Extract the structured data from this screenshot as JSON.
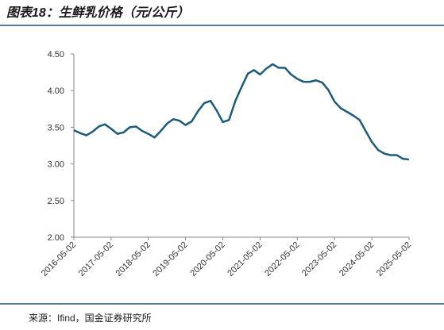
{
  "chart_data": {
    "type": "line",
    "title": "图表18：生鲜乳价格（元/公斤）",
    "source": "来源：Ifind，国金证券研究所",
    "x": [
      "2016-05-02",
      "2016-07-02",
      "2016-09-02",
      "2016-11-02",
      "2017-01-02",
      "2017-03-02",
      "2017-05-02",
      "2017-07-02",
      "2017-09-02",
      "2017-11-02",
      "2018-01-02",
      "2018-03-02",
      "2018-05-02",
      "2018-07-02",
      "2018-09-02",
      "2018-11-02",
      "2019-01-02",
      "2019-03-02",
      "2019-05-02",
      "2019-07-02",
      "2019-09-02",
      "2019-11-02",
      "2020-01-02",
      "2020-03-02",
      "2020-05-02",
      "2020-07-02",
      "2020-09-02",
      "2020-11-02",
      "2021-01-02",
      "2021-03-02",
      "2021-05-02",
      "2021-07-02",
      "2021-09-02",
      "2021-11-02",
      "2022-01-02",
      "2022-03-02",
      "2022-05-02",
      "2022-07-02",
      "2022-09-02",
      "2022-11-02",
      "2023-01-02",
      "2023-03-02",
      "2023-05-02",
      "2023-07-02",
      "2023-09-02",
      "2023-11-02",
      "2024-01-02",
      "2024-03-02",
      "2024-05-02",
      "2024-07-02",
      "2024-09-02",
      "2024-11-02",
      "2025-01-02",
      "2025-03-02",
      "2025-05-02"
    ],
    "series": [
      {
        "name": "生鲜乳价格",
        "color": "#1d5b7a",
        "values": [
          3.46,
          3.42,
          3.39,
          3.44,
          3.51,
          3.54,
          3.48,
          3.41,
          3.43,
          3.5,
          3.51,
          3.45,
          3.41,
          3.36,
          3.45,
          3.55,
          3.61,
          3.59,
          3.53,
          3.58,
          3.72,
          3.83,
          3.86,
          3.73,
          3.57,
          3.6,
          3.86,
          4.05,
          4.23,
          4.28,
          4.22,
          4.3,
          4.36,
          4.31,
          4.31,
          4.22,
          4.16,
          4.12,
          4.12,
          4.14,
          4.11,
          4.01,
          3.85,
          3.76,
          3.71,
          3.66,
          3.6,
          3.45,
          3.3,
          3.19,
          3.14,
          3.12,
          3.12,
          3.07,
          3.06
        ]
      }
    ],
    "xlim": [
      "2016-05-02",
      "2025-05-02"
    ],
    "xticks": [
      "2016-05-02",
      "2017-05-02",
      "2018-05-02",
      "2019-05-02",
      "2020-05-02",
      "2021-05-02",
      "2022-05-02",
      "2023-05-02",
      "2024-05-02",
      "2025-05-02"
    ],
    "ylim": [
      2,
      4.5
    ],
    "yticks": [
      {
        "value": 2,
        "label": "2.00"
      },
      {
        "value": 2.5,
        "label": "2.50"
      },
      {
        "value": 3,
        "label": "3.00"
      },
      {
        "value": 3.5,
        "label": "3.50"
      },
      {
        "value": 4,
        "label": "4.00"
      },
      {
        "value": 4.5,
        "label": "4.50"
      }
    ],
    "grid": false
  }
}
